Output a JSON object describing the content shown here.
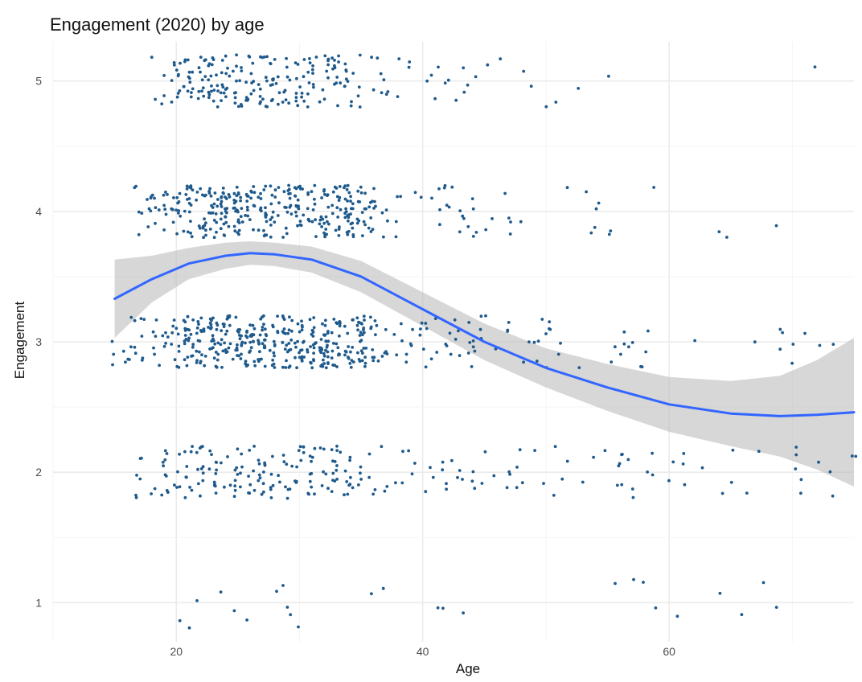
{
  "chart_data": {
    "type": "scatter",
    "title": "Engagement (2020) by age",
    "xlabel": "Age",
    "ylabel": "Engagement",
    "xlim": [
      10,
      75
    ],
    "ylim": [
      0.7,
      5.3
    ],
    "x_ticks": [
      20,
      40,
      60
    ],
    "y_ticks": [
      1,
      2,
      3,
      4,
      5
    ],
    "grid": true,
    "legend": "none",
    "colors": {
      "points": "#1f5a8c",
      "smooth_line": "#3366ff",
      "confidence_band": "#bdbdbd",
      "grid": "#ebebeb"
    },
    "smooth": {
      "method": "loess",
      "x": [
        15,
        18,
        21,
        24,
        26,
        28,
        31,
        35,
        40,
        45,
        50,
        55,
        60,
        65,
        69,
        72,
        75
      ],
      "y": [
        3.33,
        3.48,
        3.6,
        3.66,
        3.68,
        3.67,
        3.63,
        3.5,
        3.25,
        3.0,
        2.8,
        2.65,
        2.52,
        2.45,
        2.43,
        2.44,
        2.46
      ],
      "lower": [
        3.03,
        3.3,
        3.48,
        3.56,
        3.59,
        3.58,
        3.53,
        3.38,
        3.12,
        2.86,
        2.65,
        2.47,
        2.31,
        2.2,
        2.12,
        2.02,
        1.89
      ],
      "upper": [
        3.63,
        3.66,
        3.72,
        3.76,
        3.77,
        3.76,
        3.73,
        3.62,
        3.38,
        3.14,
        2.95,
        2.83,
        2.73,
        2.7,
        2.74,
        2.86,
        3.03
      ]
    },
    "points": {
      "jitter_height": 0.2,
      "note": "jittered raw responses; counts per (age range, engagement level)",
      "groups": [
        {
          "age_min": 18,
          "age_max": 20,
          "level": 5,
          "count": 8
        },
        {
          "age_min": 20,
          "age_max": 35,
          "level": 5,
          "count": 190
        },
        {
          "age_min": 35,
          "age_max": 45,
          "level": 5,
          "count": 25
        },
        {
          "age_min": 45,
          "age_max": 56,
          "level": 5,
          "count": 7
        },
        {
          "age_min": 72,
          "age_max": 72.5,
          "level": 5,
          "count": 1
        },
        {
          "age_min": 17,
          "age_max": 20,
          "level": 4,
          "count": 25
        },
        {
          "age_min": 20,
          "age_max": 36,
          "level": 4,
          "count": 310
        },
        {
          "age_min": 36,
          "age_max": 45,
          "level": 4,
          "count": 30
        },
        {
          "age_min": 45,
          "age_max": 60,
          "level": 4,
          "count": 15
        },
        {
          "age_min": 64,
          "age_max": 73,
          "level": 4,
          "count": 3
        },
        {
          "age_min": 15,
          "age_max": 20,
          "level": 3,
          "count": 30
        },
        {
          "age_min": 20,
          "age_max": 36,
          "level": 3,
          "count": 360
        },
        {
          "age_min": 36,
          "age_max": 45,
          "level": 3,
          "count": 45
        },
        {
          "age_min": 45,
          "age_max": 60,
          "level": 3,
          "count": 30
        },
        {
          "age_min": 60,
          "age_max": 73,
          "level": 3,
          "count": 10
        },
        {
          "age_min": 17,
          "age_max": 20,
          "level": 2,
          "count": 20
        },
        {
          "age_min": 20,
          "age_max": 35,
          "level": 2,
          "count": 140
        },
        {
          "age_min": 35,
          "age_max": 45,
          "level": 2,
          "count": 30
        },
        {
          "age_min": 45,
          "age_max": 60,
          "level": 2,
          "count": 30
        },
        {
          "age_min": 60,
          "age_max": 75,
          "level": 2,
          "count": 20
        },
        {
          "age_min": 19,
          "age_max": 46,
          "level": 1,
          "count": 16
        },
        {
          "age_min": 54,
          "age_max": 72,
          "level": 1,
          "count": 9
        }
      ]
    }
  }
}
